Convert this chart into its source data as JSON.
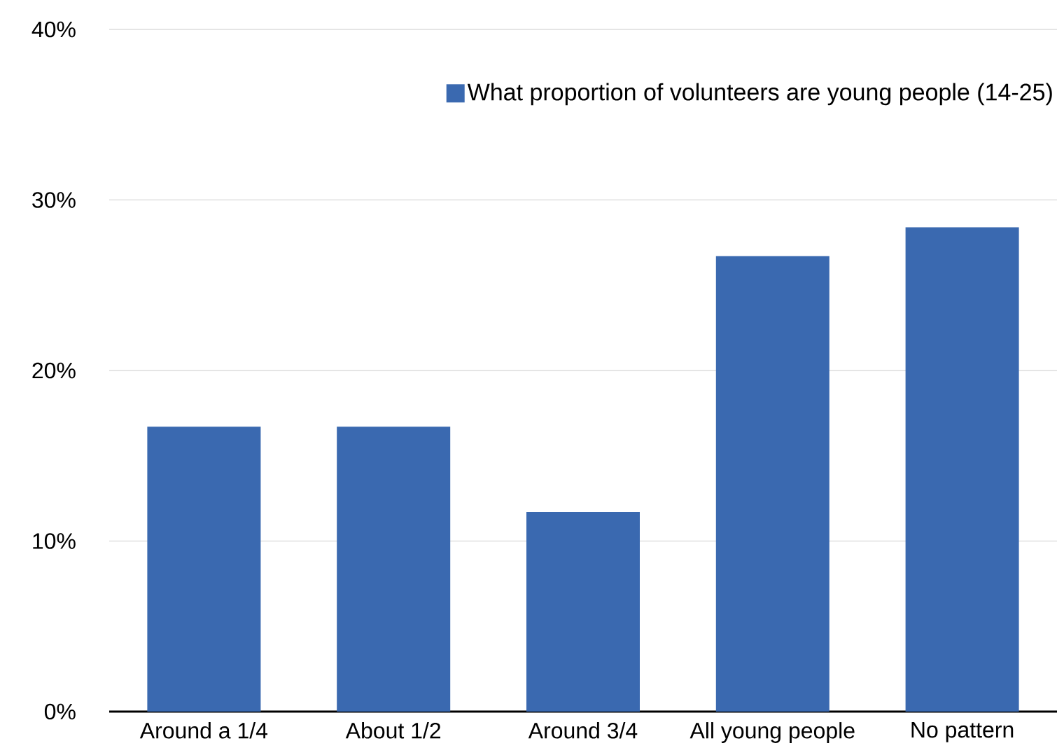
{
  "chart_data": {
    "type": "bar",
    "categories": [
      "Around a 1/4",
      "About 1/2",
      "Around 3/4",
      "All young people",
      "No pattern"
    ],
    "series": [
      {
        "name": "What proportion of volunteers are young people (14-25)",
        "color": "#3a69b0",
        "values": [
          16.7,
          16.7,
          11.7,
          26.7,
          28.4
        ]
      }
    ],
    "ylim": [
      0,
      40
    ],
    "yticks": [
      {
        "value": 0,
        "label": "0%"
      },
      {
        "value": 10,
        "label": "10%"
      },
      {
        "value": 20,
        "label": "20%"
      },
      {
        "value": 30,
        "label": "30%"
      },
      {
        "value": 40,
        "label": "40%"
      }
    ],
    "grid": "y",
    "legend": "top right"
  }
}
